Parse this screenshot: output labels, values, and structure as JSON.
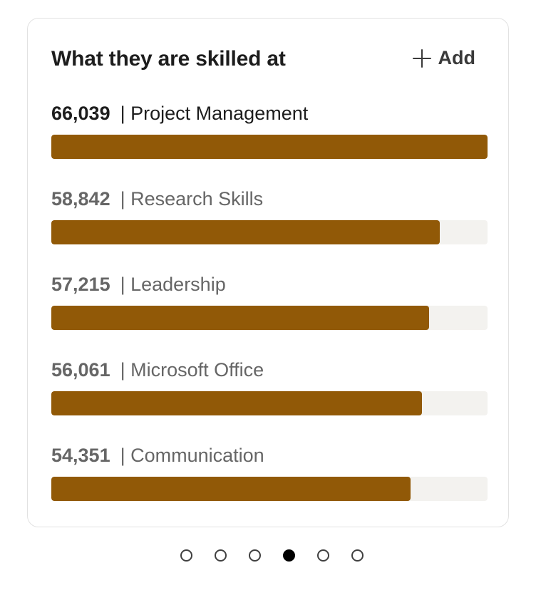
{
  "card": {
    "title": "What they are skilled at",
    "add_label": "Add"
  },
  "skills": [
    {
      "count": "66,039",
      "name": "Project Management",
      "fraction": 1.0
    },
    {
      "count": "58,842",
      "name": "Research Skills",
      "fraction": 0.891
    },
    {
      "count": "57,215",
      "name": "Leadership",
      "fraction": 0.866
    },
    {
      "count": "56,061",
      "name": "Microsoft Office",
      "fraction": 0.849
    },
    {
      "count": "54,351",
      "name": "Communication",
      "fraction": 0.823
    }
  ],
  "colors": {
    "bar_fill": "#915907",
    "bar_track": "#f3f2ef"
  },
  "pager": {
    "total": 6,
    "active_index": 3
  }
}
